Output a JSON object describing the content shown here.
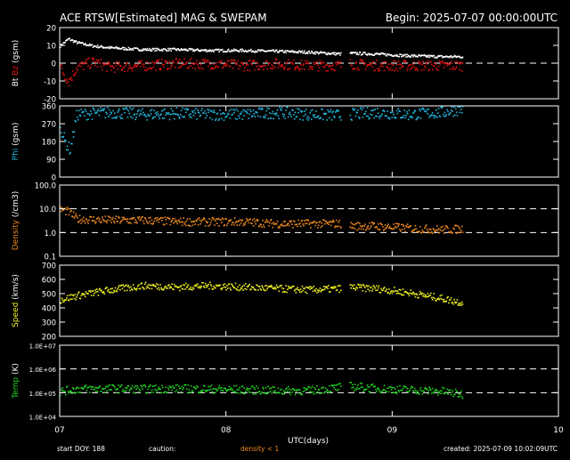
{
  "header": {
    "title": "ACE RTSW[Estimated] MAG & SWEPAM",
    "begin": "Begin: 2025-07-07 00:00:00UTC"
  },
  "footer": {
    "start_doy": "start DOY: 188",
    "caution": "caution:",
    "density_note": "density < 1",
    "created": "created: 2025-07-09 10:02:09UTC"
  },
  "colors": {
    "background": "#000000",
    "bt": "#ffffff",
    "bz": "#e01010",
    "phi": "#22b8e0",
    "density": "#f08a20",
    "speed": "#f0f020",
    "temp": "#20d020",
    "axis": "#ffffff"
  },
  "chart_data": {
    "type": "scatter",
    "xlabel": "UTC(days)",
    "x_range_days": [
      0,
      3
    ],
    "x_tick_labels": [
      "07",
      "08",
      "09",
      "10"
    ],
    "data_end_day": 2.42,
    "gaps": [
      [
        1.69,
        1.74
      ]
    ],
    "panels": [
      {
        "id": "mag",
        "ylabel": [
          {
            "text": "Bt",
            "color": "#ffffff"
          },
          {
            "text": "Bz",
            "color": "#e01010"
          },
          {
            "text": "(gsm)",
            "color": "#ffffff"
          }
        ],
        "scale": "linear",
        "ylim": [
          -20,
          20
        ],
        "yticks": [
          -20,
          -10,
          0,
          10,
          20
        ],
        "ytick_labels": [
          "-20",
          "-10",
          "0",
          "10",
          "20"
        ],
        "ref_lines": [
          0
        ],
        "series": [
          {
            "key": "bt",
            "color": "#ffffff",
            "x": [
              0,
              0.05,
              0.1,
              0.2,
              0.3,
              0.5,
              0.7,
              0.9,
              1.1,
              1.3,
              1.5,
              1.69,
              1.74,
              1.9,
              2.1,
              2.3,
              2.42
            ],
            "y": [
              10,
              14,
              12,
              10,
              9,
              8,
              8,
              7.5,
              7.5,
              7,
              6.5,
              5.5,
              6,
              5.5,
              4.5,
              4,
              4
            ]
          },
          {
            "key": "bz",
            "color": "#e01010",
            "x": [
              0,
              0.05,
              0.1,
              0.2,
              0.3,
              0.5,
              0.7,
              0.9,
              1.1,
              1.3,
              1.5,
              1.69,
              1.74,
              1.9,
              2.1,
              2.3,
              2.42
            ],
            "y": [
              -2,
              -10,
              -2,
              1,
              -2,
              -1,
              0,
              0,
              -1,
              0,
              -1,
              -1,
              0,
              -1,
              -1,
              -1,
              -1
            ]
          }
        ]
      },
      {
        "id": "phi",
        "ylabel": [
          {
            "text": "Phi",
            "color": "#22b8e0"
          },
          {
            "text": "(gsm)",
            "color": "#ffffff"
          }
        ],
        "scale": "linear",
        "ylim": [
          0,
          360
        ],
        "yticks": [
          0,
          90,
          180,
          270,
          360
        ],
        "ytick_labels": [
          "0",
          "90",
          "180",
          "270",
          "360"
        ],
        "ref_lines": [],
        "series": [
          {
            "key": "phi",
            "color": "#22b8e0",
            "x": [
              0,
              0.03,
              0.06,
              0.1,
              0.3,
              0.5,
              0.7,
              0.9,
              1.1,
              1.3,
              1.5,
              1.69,
              1.74,
              1.9,
              2.1,
              2.3,
              2.42
            ],
            "y": [
              260,
              180,
              140,
              320,
              330,
              320,
              325,
              320,
              320,
              330,
              320,
              315,
              320,
              330,
              320,
              330,
              350
            ]
          }
        ]
      },
      {
        "id": "density",
        "ylabel": [
          {
            "text": "Density",
            "color": "#f08a20"
          },
          {
            "text": "(/cm3)",
            "color": "#ffffff"
          }
        ],
        "scale": "log",
        "ylim": [
          0.1,
          100
        ],
        "yticks": [
          0.1,
          1,
          10,
          100
        ],
        "ytick_labels": [
          "0.1",
          "1.0",
          "10.0",
          "100.0"
        ],
        "ref_lines": [
          1,
          10
        ],
        "series": [
          {
            "key": "density",
            "color": "#f08a20",
            "x": [
              0,
              0.05,
              0.1,
              0.3,
              0.5,
              0.7,
              0.9,
              1.1,
              1.3,
              1.5,
              1.69,
              1.74,
              1.9,
              2.1,
              2.3,
              2.42
            ],
            "y": [
              10,
              8,
              4,
              3.5,
              3.5,
              3,
              3,
              3,
              2.5,
              2.5,
              2.5,
              2,
              2,
              1.6,
              1.4,
              1.5
            ]
          }
        ]
      },
      {
        "id": "speed",
        "ylabel": [
          {
            "text": "Speed",
            "color": "#f0f020"
          },
          {
            "text": "(km/s)",
            "color": "#ffffff"
          }
        ],
        "scale": "linear",
        "ylim": [
          200,
          700
        ],
        "yticks": [
          200,
          300,
          400,
          500,
          600,
          700
        ],
        "ytick_labels": [
          "200",
          "300",
          "400",
          "500",
          "600",
          "700"
        ],
        "ref_lines": [],
        "series": [
          {
            "key": "speed",
            "color": "#f0f020",
            "x": [
              0,
              0.1,
              0.3,
              0.5,
              0.7,
              0.9,
              1.1,
              1.3,
              1.5,
              1.69,
              1.74,
              1.9,
              2.1,
              2.3,
              2.42
            ],
            "y": [
              460,
              490,
              530,
              560,
              550,
              560,
              550,
              540,
              530,
              540,
              550,
              540,
              510,
              470,
              440
            ]
          }
        ]
      },
      {
        "id": "temp",
        "ylabel": [
          {
            "text": "Temp",
            "color": "#20d020"
          },
          {
            "text": "(K)",
            "color": "#ffffff"
          }
        ],
        "scale": "log",
        "ylim": [
          10000,
          10000000
        ],
        "yticks": [
          10000,
          100000,
          1000000,
          10000000
        ],
        "ytick_labels": [
          "1.0E+04",
          "1.0E+05",
          "1.0E+06",
          "1.0E+07"
        ],
        "ref_lines": [
          100000,
          1000000
        ],
        "series": [
          {
            "key": "temp",
            "color": "#20d020",
            "x": [
              0,
              0.1,
              0.3,
              0.5,
              0.7,
              0.9,
              1.1,
              1.3,
              1.5,
              1.69,
              1.74,
              1.9,
              2.1,
              2.3,
              2.42
            ],
            "y": [
              120000,
              150000,
              160000,
              150000,
              160000,
              150000,
              140000,
              130000,
              130000,
              180000,
              200000,
              160000,
              140000,
              120000,
              90000
            ]
          }
        ]
      }
    ]
  }
}
